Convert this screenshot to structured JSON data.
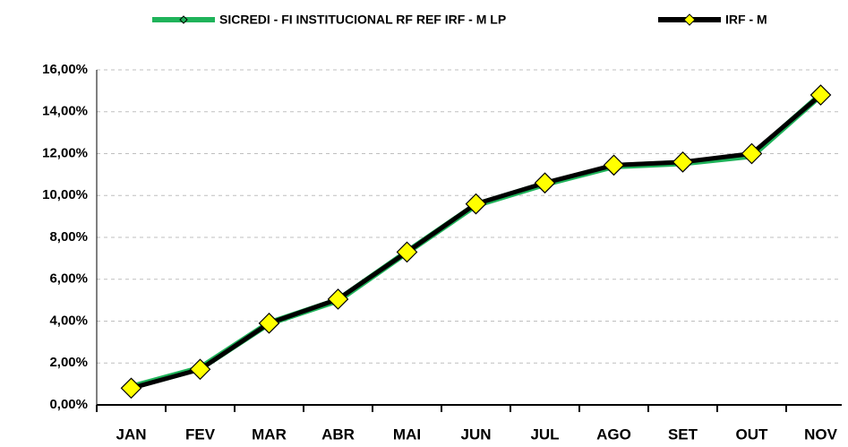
{
  "chart_data": {
    "type": "line",
    "categories": [
      "JAN",
      "FEV",
      "MAR",
      "ABR",
      "MAI",
      "JUN",
      "JUL",
      "AGO",
      "SET",
      "OUT",
      "NOV"
    ],
    "series": [
      {
        "name": "SICREDI - FI INSTITUCIONAL RF REF IRF - M LP",
        "color": "#1fb35a",
        "values": [
          0.85,
          1.75,
          3.9,
          5.0,
          7.3,
          9.55,
          10.55,
          11.4,
          11.55,
          11.9,
          14.8
        ]
      },
      {
        "name": "IRF - M",
        "color": "#000000",
        "marker_color": "#ffff00",
        "values": [
          0.8,
          1.7,
          3.9,
          5.05,
          7.3,
          9.6,
          10.6,
          11.45,
          11.6,
          12.0,
          14.8
        ]
      }
    ],
    "ylim": [
      0,
      16
    ],
    "yticks": [
      {
        "value": 0,
        "label": "0,00%"
      },
      {
        "value": 2,
        "label": "2,00%"
      },
      {
        "value": 4,
        "label": "4,00%"
      },
      {
        "value": 6,
        "label": "6,00%"
      },
      {
        "value": 8,
        "label": "8,00%"
      },
      {
        "value": 10,
        "label": "10,00%"
      },
      {
        "value": 12,
        "label": "12,00%"
      },
      {
        "value": 14,
        "label": "14,00%"
      },
      {
        "value": 16,
        "label": "16,00%"
      }
    ],
    "grid": true
  }
}
